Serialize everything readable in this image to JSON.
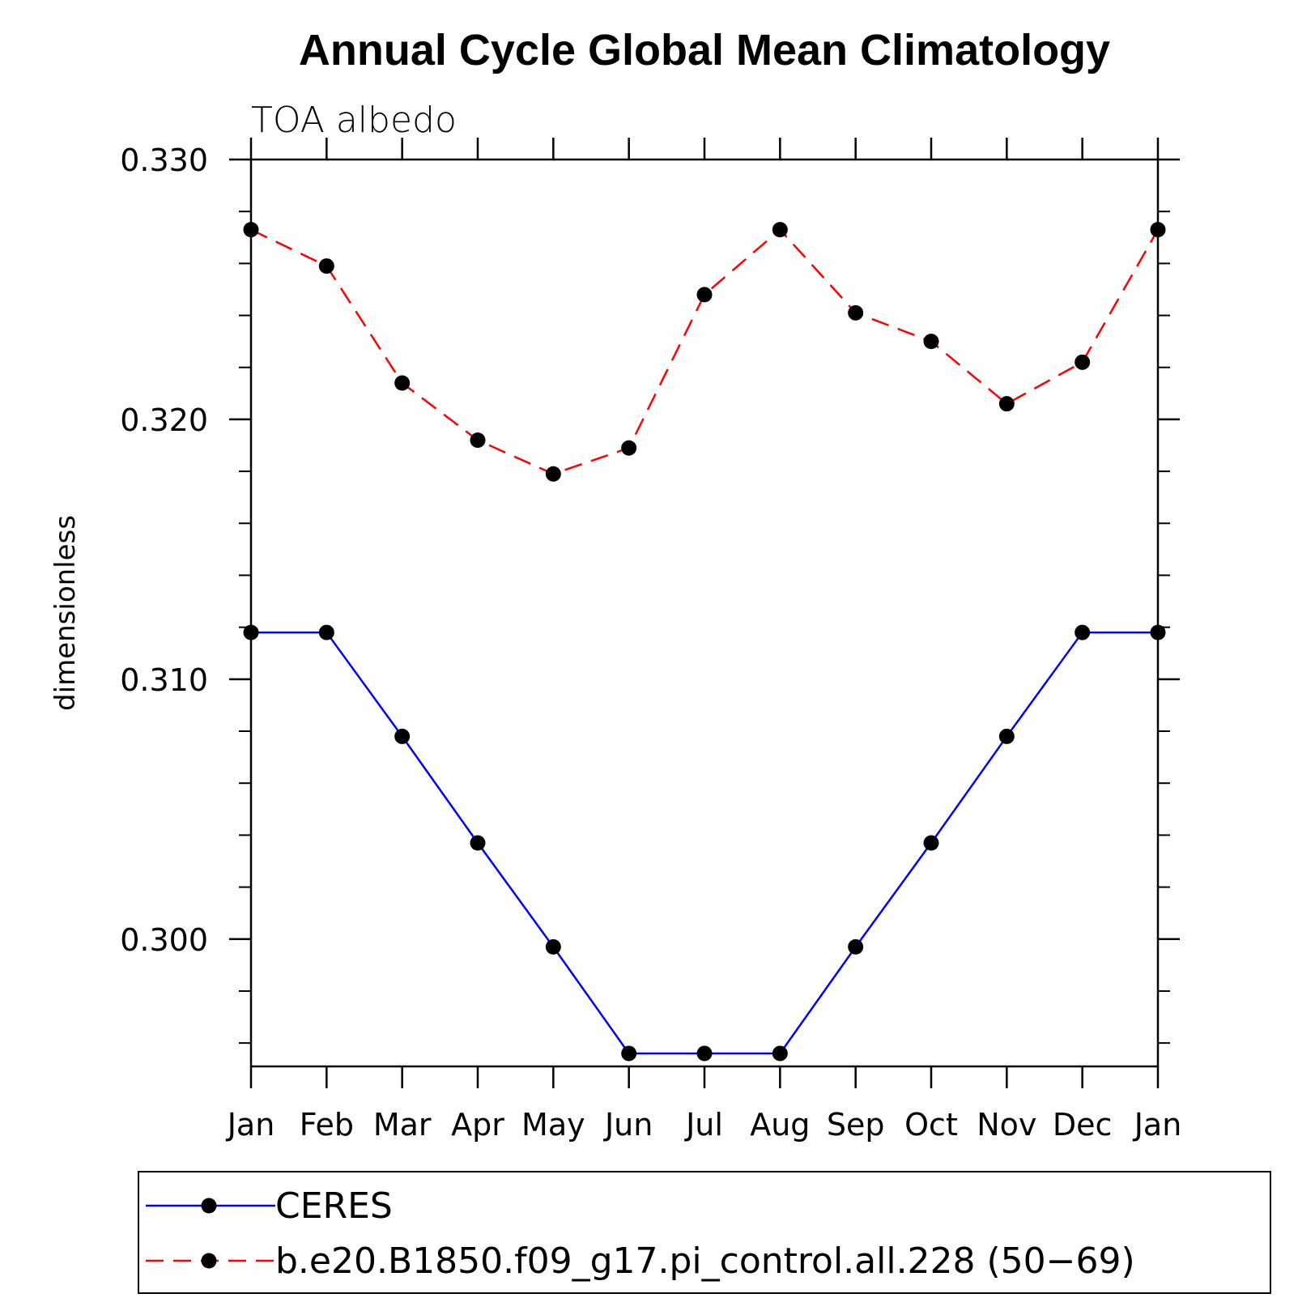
{
  "chart_data": {
    "type": "line",
    "title": "Annual Cycle Global Mean Climatology",
    "subtitle": "TOA albedo",
    "xlabel": "",
    "ylabel": "dimensionless",
    "categories": [
      "Jan",
      "Feb",
      "Mar",
      "Apr",
      "May",
      "Jun",
      "Jul",
      "Aug",
      "Sep",
      "Oct",
      "Nov",
      "Dec",
      "Jan"
    ],
    "ylim": [
      0.2951,
      0.33
    ],
    "yticks": [
      0.3,
      0.31,
      0.32,
      0.33
    ],
    "ytick_labels": [
      "0.300",
      "0.310",
      "0.320",
      "0.330"
    ],
    "yminor_step": 0.002,
    "grid": false,
    "legend_position": "bottom",
    "series": [
      {
        "name": "CERES",
        "color": "#0000ff",
        "dash": "solid",
        "marker": "filled-circle",
        "values": [
          0.3118,
          0.3118,
          0.3078,
          0.3037,
          0.2997,
          0.2956,
          0.2956,
          0.2956,
          0.2997,
          0.3037,
          0.3078,
          0.3118,
          0.3118
        ]
      },
      {
        "name": "b.e20.B1850.f09_g17.pi_control.all.228 (50−69)",
        "color": "#ff0000",
        "dash": "dashed",
        "marker": "filled-circle",
        "values": [
          0.3273,
          0.3259,
          0.3214,
          0.3192,
          0.3179,
          0.3189,
          0.3248,
          0.3273,
          0.3241,
          0.323,
          0.3206,
          0.3222,
          0.3273
        ]
      }
    ]
  }
}
